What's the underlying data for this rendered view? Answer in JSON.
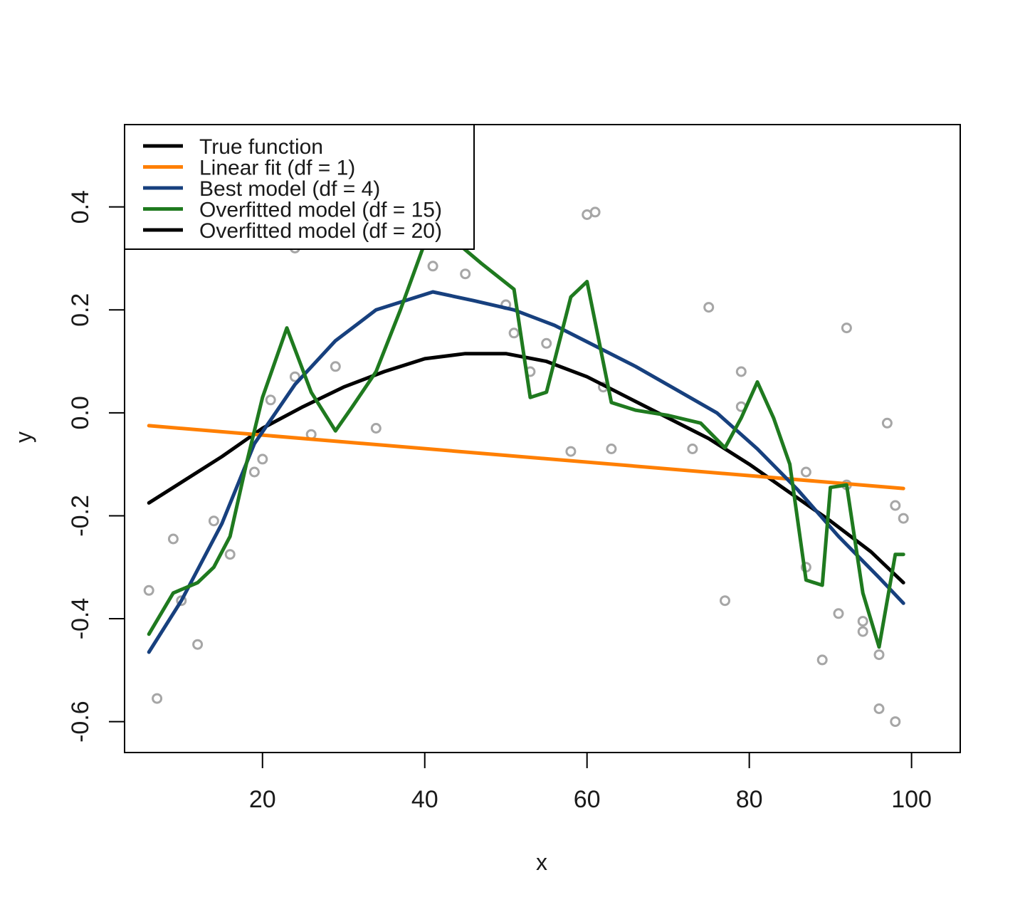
{
  "chart_data": {
    "type": "line",
    "title": "",
    "xlabel": "x",
    "ylabel": "y",
    "xlim": [
      3,
      106
    ],
    "ylim": [
      -0.66,
      0.56
    ],
    "x_ticks": [
      20,
      40,
      60,
      80,
      100
    ],
    "x_tick_labels": [
      "20",
      "40",
      "60",
      "80",
      "100"
    ],
    "y_ticks": [
      -0.6,
      -0.4,
      -0.2,
      0.0,
      0.2,
      0.4
    ],
    "y_tick_labels": [
      "-0.6",
      "-0.4",
      "-0.2",
      "0.0",
      "0.2",
      "0.4"
    ],
    "grid": false,
    "legend_position": "top-left",
    "points": {
      "color": "#a6a6a6",
      "x": [
        6,
        7,
        9,
        10,
        12,
        14,
        16,
        19,
        20,
        21,
        24,
        24,
        26,
        29,
        34,
        41,
        45,
        50,
        51,
        53,
        55,
        58,
        60,
        61,
        62,
        63,
        73,
        75,
        77,
        79,
        79,
        87,
        87,
        89,
        91,
        92,
        92,
        94,
        94,
        96,
        96,
        97,
        98,
        98,
        99
      ],
      "y": [
        -0.345,
        -0.555,
        -0.245,
        -0.365,
        -0.45,
        -0.21,
        -0.275,
        -0.115,
        -0.09,
        0.025,
        0.07,
        0.32,
        -0.042,
        0.09,
        -0.03,
        0.285,
        0.27,
        0.21,
        0.155,
        0.08,
        0.135,
        -0.075,
        0.385,
        0.39,
        0.05,
        -0.07,
        -0.07,
        0.205,
        -0.365,
        0.012,
        0.08,
        -0.3,
        -0.115,
        -0.48,
        -0.39,
        0.165,
        -0.14,
        -0.405,
        -0.425,
        -0.47,
        -0.575,
        -0.02,
        -0.18,
        -0.6,
        -0.205
      ]
    },
    "series": [
      {
        "name": "True function",
        "color": "#000000",
        "x": [
          6,
          10,
          15,
          20,
          25,
          30,
          35,
          40,
          45,
          50,
          55,
          60,
          65,
          70,
          75,
          80,
          85,
          90,
          95,
          99
        ],
        "y": [
          -0.175,
          -0.135,
          -0.085,
          -0.03,
          0.012,
          0.05,
          0.08,
          0.105,
          0.115,
          0.115,
          0.1,
          0.07,
          0.03,
          -0.01,
          -0.05,
          -0.1,
          -0.155,
          -0.21,
          -0.27,
          -0.33
        ]
      },
      {
        "name": "Linear fit (df = 1)",
        "color": "#ff7f00",
        "x": [
          6,
          99
        ],
        "y": [
          -0.025,
          -0.147
        ]
      },
      {
        "name": "Best model (df = 4)",
        "color": "#17407e",
        "x": [
          6,
          10,
          15,
          19,
          24,
          29,
          34,
          41,
          46,
          51,
          56,
          61,
          66,
          71,
          76,
          81,
          86,
          91,
          96,
          99
        ],
        "y": [
          -0.465,
          -0.365,
          -0.215,
          -0.06,
          0.055,
          0.14,
          0.2,
          0.235,
          0.218,
          0.2,
          0.17,
          0.13,
          0.09,
          0.045,
          0.0,
          -0.07,
          -0.15,
          -0.24,
          -0.32,
          -0.37
        ]
      },
      {
        "name": "Overfitted model (df = 15)",
        "color": "#1f7a1f",
        "x": [
          6,
          9,
          12,
          14,
          16,
          18,
          20,
          23,
          26,
          29,
          31,
          34,
          37,
          40,
          42,
          44,
          47,
          51,
          53,
          55,
          58,
          60,
          63,
          66,
          70,
          74,
          77,
          79,
          81,
          83,
          85,
          87,
          89,
          90,
          92,
          94,
          96,
          98,
          99
        ],
        "y": [
          -0.43,
          -0.35,
          -0.33,
          -0.3,
          -0.24,
          -0.1,
          0.03,
          0.165,
          0.04,
          -0.035,
          0.01,
          0.08,
          0.2,
          0.33,
          0.36,
          0.33,
          0.29,
          0.24,
          0.03,
          0.04,
          0.225,
          0.255,
          0.02,
          0.005,
          -0.005,
          -0.02,
          -0.068,
          -0.01,
          0.06,
          -0.01,
          -0.1,
          -0.325,
          -0.335,
          -0.145,
          -0.14,
          -0.35,
          -0.455,
          -0.275,
          -0.275
        ]
      },
      {
        "name": "Overfitted model (df = 20)",
        "color": "#000000",
        "x": [],
        "y": []
      }
    ]
  }
}
